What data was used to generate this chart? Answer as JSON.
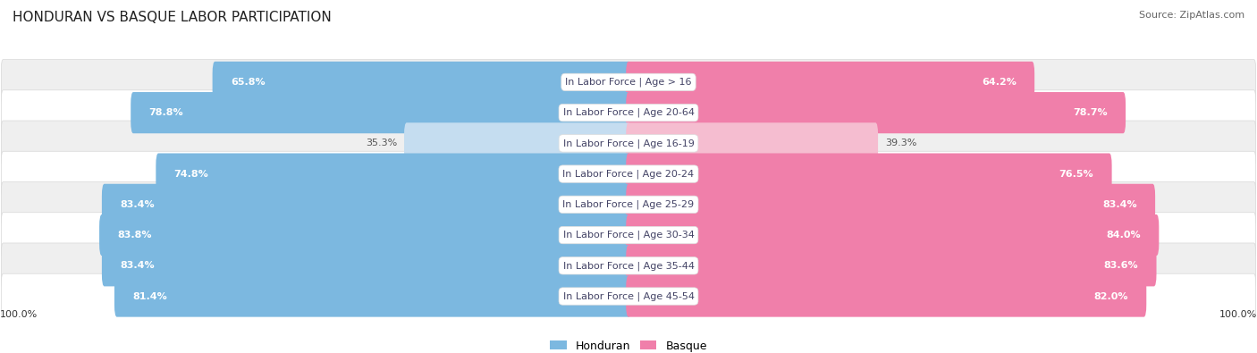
{
  "title": "HONDURAN VS BASQUE LABOR PARTICIPATION",
  "source": "Source: ZipAtlas.com",
  "categories": [
    "In Labor Force | Age > 16",
    "In Labor Force | Age 20-64",
    "In Labor Force | Age 16-19",
    "In Labor Force | Age 20-24",
    "In Labor Force | Age 25-29",
    "In Labor Force | Age 30-34",
    "In Labor Force | Age 35-44",
    "In Labor Force | Age 45-54"
  ],
  "honduran_values": [
    65.8,
    78.8,
    35.3,
    74.8,
    83.4,
    83.8,
    83.4,
    81.4
  ],
  "basque_values": [
    64.2,
    78.7,
    39.3,
    76.5,
    83.4,
    84.0,
    83.6,
    82.0
  ],
  "honduran_color": "#7cb8e0",
  "honduran_light_color": "#c5ddf0",
  "basque_color": "#f07faa",
  "basque_light_color": "#f5bdd0",
  "row_bg_stripe": "#efefef",
  "row_bg_white": "#ffffff",
  "row_border_color": "#d8d8d8",
  "max_value": 100.0,
  "legend_honduran": "Honduran",
  "legend_basque": "Basque",
  "title_fontsize": 11,
  "label_fontsize": 8,
  "category_fontsize": 8,
  "legend_fontsize": 9,
  "source_fontsize": 8
}
